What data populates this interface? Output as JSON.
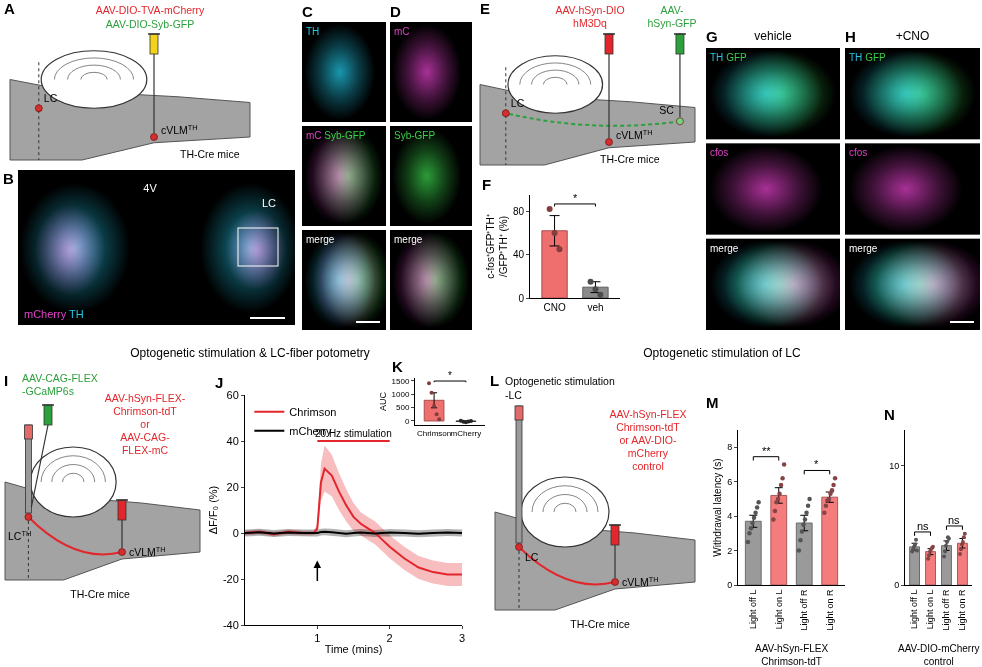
{
  "section_titles": [
    "Optogenetic stimulation & LC-fiber potometry",
    "Optogenetic stimulation of LC"
  ],
  "schematics": [
    {
      "letter": "A",
      "texts": [
        {
          "text": "AAV-DIO-TVA-mCherry",
          "color": "#e3262b"
        },
        {
          "text": "AAV-DIO-Syb-GFP",
          "color": "#2ca03c"
        },
        {
          "text": "LC"
        },
        {
          "text": "cVLM",
          "sup": "TH"
        },
        {
          "text": "TH-Cre mice"
        }
      ]
    },
    {
      "letter": "E",
      "texts": [
        {
          "text": "AAV-hSyn-DIO",
          "color": "#e3262b"
        },
        {
          "text": "hM3Dq",
          "color": "#e3262b"
        },
        {
          "text": "AAV-",
          "color": "#2ca03c"
        },
        {
          "text": "hSyn-GFP",
          "color": "#2ca03c"
        },
        {
          "text": "LC"
        },
        {
          "text": "cVLM",
          "sup": "TH"
        },
        {
          "text": "SC"
        },
        {
          "text": "TH-Cre mice"
        }
      ]
    },
    {
      "letter": "I",
      "texts": [
        {
          "text": "AAV-CAG-FLEX",
          "color": "#2ca03c"
        },
        {
          "text": "-GCaMP6s",
          "color": "#2ca03c"
        },
        {
          "text": "AAV-hSyn-FLEX-",
          "color": "#e3262b"
        },
        {
          "text": "Chrimson-tdT",
          "color": "#e3262b"
        },
        {
          "text": "or",
          "color": "#e3262b"
        },
        {
          "text": "AAV-CAG-",
          "color": "#e3262b"
        },
        {
          "text": "FLEX-mC",
          "color": "#e3262b"
        },
        {
          "text": "LC",
          "sup": "TH"
        },
        {
          "text": "cVLM",
          "sup": "TH"
        },
        {
          "text": "TH-Cre mice"
        }
      ]
    },
    {
      "letter": "L",
      "texts": [
        {
          "text": "Optogenetic stimulation"
        },
        {
          "text": "-LC"
        },
        {
          "text": "AAV-hSyn-FLEX",
          "color": "#e3262b"
        },
        {
          "text": "Chrimson-tdT",
          "color": "#e3262b"
        },
        {
          "text": "or AAV-DIO-",
          "color": "#e3262b"
        },
        {
          "text": "mCherry",
          "color": "#e3262b"
        },
        {
          "text": "control",
          "color": "#e3262b"
        },
        {
          "text": "LC"
        },
        {
          "text": "cVLM",
          "sup": "TH"
        },
        {
          "text": "TH-Cre mice"
        }
      ]
    }
  ],
  "images": [
    {
      "letter": "B",
      "labels": [
        {
          "text": "4V"
        },
        {
          "text": "LC"
        }
      ],
      "channels": [
        {
          "text": "mCherry",
          "color": "#e040c8"
        },
        {
          "text": "TH",
          "color": "#22c8e8"
        }
      ]
    },
    {
      "letter": "C",
      "panels": [
        [
          {
            "text": "TH",
            "color": "#22c8e8"
          }
        ],
        [
          {
            "text": "mC",
            "color": "#e040c8"
          },
          {
            "text": "Syb-GFP",
            "color": "#3ad04a"
          }
        ],
        [
          {
            "text": "merge",
            "color": "#ffffff"
          }
        ]
      ]
    },
    {
      "letter": "D",
      "panels": [
        [
          {
            "text": "mC",
            "color": "#e040c8"
          }
        ],
        [
          {
            "text": "Syb-GFP",
            "color": "#3ad04a"
          }
        ],
        [
          {
            "text": "merge",
            "color": "#ffffff"
          }
        ]
      ]
    },
    {
      "letter": "G",
      "title": "vehicle",
      "panels": [
        [
          {
            "text": "TH",
            "color": "#22c8e8"
          },
          {
            "text": "GFP",
            "color": "#3ad04a"
          }
        ],
        [
          {
            "text": "cfos",
            "color": "#e040c8"
          }
        ],
        [
          {
            "text": "merge",
            "color": "#ffffff"
          }
        ]
      ]
    },
    {
      "letter": "H",
      "title": "+CNO",
      "panels": [
        [
          {
            "text": "TH",
            "color": "#22c8e8"
          },
          {
            "text": "GFP",
            "color": "#3ad04a"
          }
        ],
        [
          {
            "text": "cfos",
            "color": "#e040c8"
          }
        ],
        [
          {
            "text": "merge",
            "color": "#ffffff"
          }
        ]
      ]
    }
  ],
  "chart_data": [
    {
      "letter": "F",
      "type": "bar",
      "categories": [
        "CNO",
        "veh"
      ],
      "values": [
        62,
        10
      ],
      "errors": [
        14,
        5
      ],
      "colors": [
        "#ef6f6f",
        "#8a8a8a"
      ],
      "points": [
        [
          82,
          60,
          45
        ],
        [
          15,
          8,
          3
        ]
      ],
      "ylim": [
        0,
        95
      ],
      "yticks": [
        0,
        40,
        80
      ],
      "y_label": [
        "c-fos⁺GFP⁺TH⁺",
        "/GFP⁺TH⁺ (%)"
      ],
      "significance": [
        {
          "from": 0,
          "to": 1,
          "label": "*"
        }
      ]
    },
    {
      "letter": "J",
      "type": "line",
      "x": [
        0,
        0.2,
        0.4,
        0.6,
        0.8,
        0.95,
        1.0,
        1.05,
        1.1,
        1.2,
        1.3,
        1.4,
        1.5,
        1.6,
        1.7,
        1.8,
        1.9,
        2.0,
        2.2,
        2.4,
        2.6,
        2.8,
        3.0
      ],
      "series": [
        {
          "name": "Chrimson",
          "color": "#e3262b",
          "values": [
            0,
            0.5,
            -0.5,
            0.5,
            0,
            0,
            2,
            22,
            28,
            25,
            18,
            12,
            7,
            4,
            2,
            0,
            -3,
            -6,
            -11,
            -15,
            -17,
            -18,
            -18
          ],
          "errors": [
            1,
            1,
            1,
            1,
            1,
            1,
            2,
            8,
            10,
            9,
            8,
            7,
            6,
            5,
            5,
            5,
            5,
            5,
            5,
            5,
            5,
            5,
            5
          ]
        },
        {
          "name": "mCherry",
          "color": "#000000",
          "values": [
            0,
            0.3,
            -0.2,
            0.2,
            0,
            0,
            0,
            0.4,
            0.5,
            0.3,
            0,
            -0.3,
            0,
            0.2,
            0,
            -0.2,
            0,
            0.2,
            0,
            -0.3,
            0,
            0.2,
            0
          ],
          "errors": [
            1.5,
            1.5,
            1.5,
            1.5,
            1.5,
            1.5,
            1.5,
            1.5,
            1.5,
            1.5,
            1.5,
            1.5,
            1.5,
            1.5,
            1.5,
            1.5,
            1.5,
            1.5,
            1.5,
            1.5,
            1.5,
            1.5,
            1.5
          ]
        }
      ],
      "xlim": [
        0,
        3
      ],
      "xticks": [
        1,
        2,
        3
      ],
      "ylim": [
        -40,
        60
      ],
      "yticks": [
        -40,
        -20,
        0,
        20,
        40,
        60
      ],
      "x_label": "Time (mins)",
      "y_label": [
        "ΔF/F₀ (%)"
      ],
      "legend": "upper left",
      "stimulation": {
        "label": "20 Hz stimulation",
        "start": 1,
        "end": 2,
        "y": 40
      }
    },
    {
      "letter": "K",
      "type": "bar",
      "categories": [
        "Chrimson",
        "mCherry"
      ],
      "values": [
        770,
        -20
      ],
      "errors": [
        280,
        15
      ],
      "colors": [
        "#ef6f6f",
        "#444444"
      ],
      "points": [
        [
          1400,
          1050,
          560,
          250,
          60
        ],
        [
          10,
          -30,
          -50,
          -20,
          0
        ]
      ],
      "ylim": [
        -150,
        1600
      ],
      "yticks": [
        0,
        500,
        1000,
        1500
      ],
      "y_label": [
        "AUC"
      ],
      "significance": [
        {
          "from": 0,
          "to": 1,
          "label": "*"
        }
      ]
    },
    {
      "letter": "M",
      "type": "bar",
      "categories": [
        "Light off L",
        "Light on L",
        "Light off R",
        "Light on R"
      ],
      "values": [
        3.7,
        5.2,
        3.6,
        5.1
      ],
      "errors": [
        0.35,
        0.45,
        0.45,
        0.3
      ],
      "colors": [
        "#9a9a9a",
        "#f47c7c",
        "#9a9a9a",
        "#f47c7c"
      ],
      "points": [
        [
          2.5,
          3.0,
          3.3,
          3.6,
          3.9,
          4.2,
          4.5,
          4.8
        ],
        [
          3.8,
          4.3,
          4.8,
          5.0,
          5.3,
          5.8,
          6.2,
          7.0
        ],
        [
          2.0,
          2.6,
          3.1,
          3.5,
          3.8,
          4.2,
          4.6,
          5.0
        ],
        [
          4.2,
          4.6,
          4.9,
          5.0,
          5.3,
          5.5,
          5.8,
          6.2
        ]
      ],
      "ylim": [
        0,
        9
      ],
      "yticks": [
        0,
        2,
        4,
        6,
        8
      ],
      "y_label": [
        "Withdrawal latency (s)"
      ],
      "group_label": [
        "AAV-hSyn-FLEX",
        "Chrimson-tdT"
      ],
      "significance": [
        {
          "from": 0,
          "to": 1,
          "label": "**"
        },
        {
          "from": 2,
          "to": 3,
          "label": "*"
        }
      ]
    },
    {
      "letter": "N",
      "type": "bar",
      "categories": [
        "Light off L",
        "Light on L",
        "Light off R",
        "Light on R"
      ],
      "values": [
        3.2,
        2.8,
        3.3,
        3.5
      ],
      "errors": [
        0.3,
        0.25,
        0.4,
        0.4
      ],
      "colors": [
        "#9a9a9a",
        "#f47c7c",
        "#9a9a9a",
        "#f47c7c"
      ],
      "points": [
        [
          2.8,
          3.0,
          3.2,
          3.4,
          3.8,
          2.9
        ],
        [
          2.2,
          2.5,
          2.8,
          3.0,
          3.1,
          3.2
        ],
        [
          2.4,
          2.8,
          3.3,
          3.6,
          4.0,
          3.9
        ],
        [
          2.6,
          3.0,
          3.4,
          3.6,
          4.0,
          4.3
        ]
      ],
      "ylim": [
        0,
        13
      ],
      "yticks": [
        0,
        10
      ],
      "group_label": [
        "AAV-DIO-mCherry",
        "control"
      ],
      "significance": [
        {
          "from": 0,
          "to": 1,
          "label": "ns"
        },
        {
          "from": 2,
          "to": 3,
          "label": "ns"
        }
      ]
    }
  ]
}
